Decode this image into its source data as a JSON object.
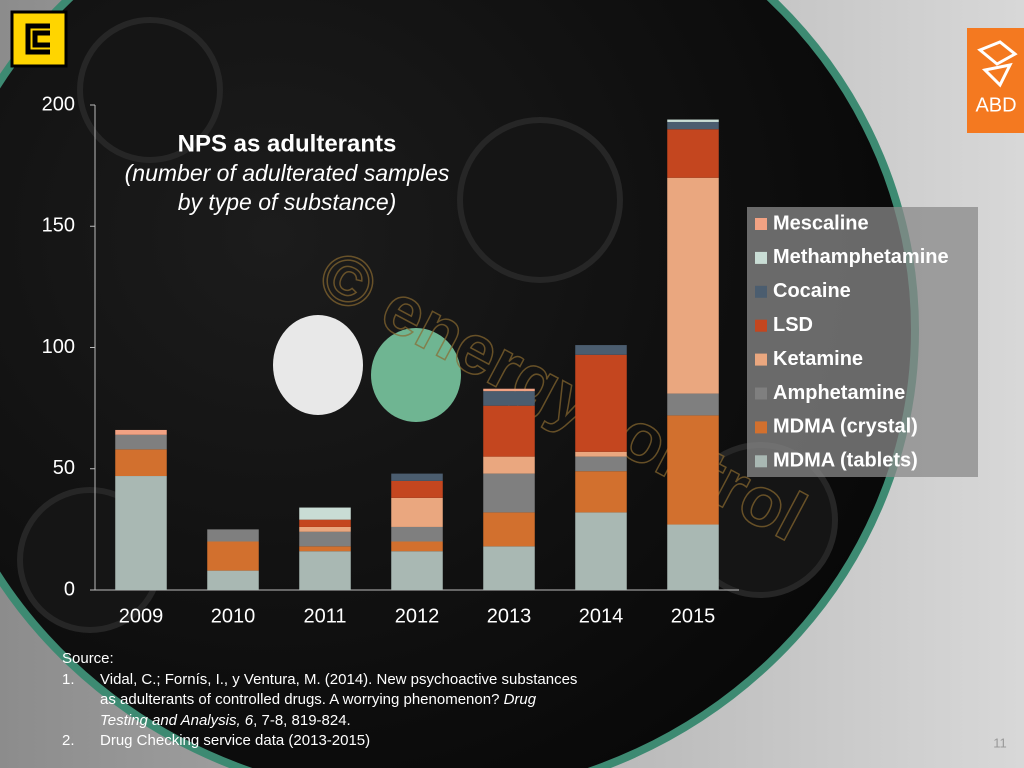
{
  "logo_text": "ABD",
  "watermark": "© energycontrol",
  "page_number": "11",
  "source": {
    "heading": "Source:",
    "items": [
      {
        "number": "1.",
        "text": "Vidal, C.; Fornís, I., y Ventura, M. (2014). New psychoactive substances as adulterants of controlled drugs. A worrying phenomenon? ",
        "journal": "Drug Testing and Analysis, 6",
        "pages": ", 7-8, 819-824."
      },
      {
        "number": "2.",
        "text": "Drug Checking service data (2013-2015)"
      }
    ]
  },
  "chart_data": {
    "type": "stacked-bar",
    "title": "NPS as adulterants",
    "subtitle": [
      "(number of adulterated samples",
      "by type of substance)"
    ],
    "categories": [
      "2009",
      "2010",
      "2011",
      "2012",
      "2013",
      "2014",
      "2015"
    ],
    "series": [
      {
        "name": "MDMA (tablets)",
        "color": "#a9b8b3",
        "values": [
          47,
          8,
          16,
          16,
          18,
          32,
          27
        ]
      },
      {
        "name": "MDMA (crystal)",
        "color": "#d2702e",
        "values": [
          11,
          12,
          2,
          4,
          14,
          17,
          45
        ]
      },
      {
        "name": "Amphetamine",
        "color": "#7f7f7f",
        "values": [
          6,
          5,
          6,
          6,
          16,
          6,
          9
        ]
      },
      {
        "name": "Ketamine",
        "color": "#eaa77f",
        "values": [
          0,
          0,
          2,
          12,
          7,
          2,
          89
        ]
      },
      {
        "name": "LSD",
        "color": "#c4461f",
        "values": [
          0,
          0,
          3,
          7,
          21,
          40,
          20
        ]
      },
      {
        "name": "Cocaine",
        "color": "#4b5d6f",
        "values": [
          0,
          0,
          0,
          3,
          6,
          4,
          3
        ]
      },
      {
        "name": "Methamphetamine",
        "color": "#c9ddd5",
        "values": [
          0,
          0,
          5,
          0,
          0,
          0,
          1
        ]
      },
      {
        "name": "Mescaline",
        "color": "#f2a283",
        "values": [
          2,
          0,
          0,
          0,
          1,
          0,
          0
        ]
      }
    ],
    "ylim": [
      0,
      200
    ],
    "yticks": [
      0,
      50,
      100,
      150,
      200
    ]
  }
}
